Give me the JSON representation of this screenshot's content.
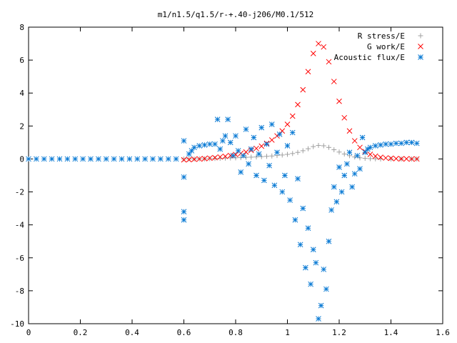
{
  "chart_data": {
    "type": "scatter",
    "title": "m1/n1.5/q1.5/r-+.40-j206/M0.1/512",
    "xlabel": "",
    "ylabel": "",
    "xlim": [
      0,
      1.6
    ],
    "ylim": [
      -10,
      8
    ],
    "x_ticks": [
      "0",
      "0.2",
      "0.4",
      "0.6",
      "0.8",
      "1",
      "1.2",
      "1.4",
      "1.6"
    ],
    "y_ticks": [
      "-10",
      "-8",
      "-6",
      "-4",
      "-2",
      "0",
      "2",
      "4",
      "6",
      "8"
    ],
    "grid": false,
    "legend_position": "top-right",
    "series": [
      {
        "name": "R stress/E",
        "marker": "plus",
        "color": "#a0a0a0",
        "points": [
          [
            0.6,
            0.0
          ],
          [
            0.62,
            0.0
          ],
          [
            0.64,
            0.0
          ],
          [
            0.66,
            0.01
          ],
          [
            0.68,
            0.01
          ],
          [
            0.7,
            0.02
          ],
          [
            0.72,
            0.03
          ],
          [
            0.74,
            0.04
          ],
          [
            0.76,
            0.05
          ],
          [
            0.78,
            0.06
          ],
          [
            0.8,
            0.07
          ],
          [
            0.82,
            0.08
          ],
          [
            0.84,
            0.1
          ],
          [
            0.86,
            0.11
          ],
          [
            0.88,
            0.12
          ],
          [
            0.9,
            0.14
          ],
          [
            0.92,
            0.16
          ],
          [
            0.94,
            0.18
          ],
          [
            0.96,
            0.21
          ],
          [
            0.98,
            0.24
          ],
          [
            1.0,
            0.28
          ],
          [
            1.02,
            0.33
          ],
          [
            1.04,
            0.4
          ],
          [
            1.06,
            0.5
          ],
          [
            1.08,
            0.62
          ],
          [
            1.1,
            0.75
          ],
          [
            1.12,
            0.82
          ],
          [
            1.14,
            0.8
          ],
          [
            1.16,
            0.7
          ],
          [
            1.18,
            0.56
          ],
          [
            1.2,
            0.42
          ],
          [
            1.22,
            0.3
          ],
          [
            1.24,
            0.2
          ],
          [
            1.26,
            0.12
          ],
          [
            1.28,
            0.07
          ],
          [
            1.3,
            0.04
          ],
          [
            1.32,
            0.02
          ],
          [
            1.34,
            0.01
          ],
          [
            1.36,
            0.0
          ],
          [
            1.4,
            0.0
          ],
          [
            1.44,
            0.0
          ],
          [
            1.48,
            0.0
          ],
          [
            1.5,
            0.0
          ]
        ]
      },
      {
        "name": "G work/E",
        "marker": "cross",
        "color": "#ff0000",
        "points": [
          [
            0.6,
            -0.05
          ],
          [
            0.62,
            -0.04
          ],
          [
            0.64,
            -0.02
          ],
          [
            0.66,
            0.0
          ],
          [
            0.68,
            0.02
          ],
          [
            0.7,
            0.05
          ],
          [
            0.72,
            0.08
          ],
          [
            0.74,
            0.12
          ],
          [
            0.76,
            0.16
          ],
          [
            0.78,
            0.21
          ],
          [
            0.8,
            0.27
          ],
          [
            0.82,
            0.34
          ],
          [
            0.84,
            0.42
          ],
          [
            0.86,
            0.52
          ],
          [
            0.88,
            0.64
          ],
          [
            0.9,
            0.78
          ],
          [
            0.92,
            0.95
          ],
          [
            0.94,
            1.15
          ],
          [
            0.96,
            1.4
          ],
          [
            0.98,
            1.7
          ],
          [
            1.0,
            2.1
          ],
          [
            1.02,
            2.6
          ],
          [
            1.04,
            3.3
          ],
          [
            1.06,
            4.2
          ],
          [
            1.08,
            5.3
          ],
          [
            1.1,
            6.4
          ],
          [
            1.12,
            7.0
          ],
          [
            1.14,
            6.8
          ],
          [
            1.16,
            5.9
          ],
          [
            1.18,
            4.7
          ],
          [
            1.2,
            3.5
          ],
          [
            1.22,
            2.5
          ],
          [
            1.24,
            1.7
          ],
          [
            1.26,
            1.1
          ],
          [
            1.28,
            0.7
          ],
          [
            1.3,
            0.45
          ],
          [
            1.32,
            0.28
          ],
          [
            1.34,
            0.17
          ],
          [
            1.36,
            0.1
          ],
          [
            1.38,
            0.06
          ],
          [
            1.4,
            0.04
          ],
          [
            1.42,
            0.02
          ],
          [
            1.44,
            0.01
          ],
          [
            1.46,
            0.01
          ],
          [
            1.48,
            0.0
          ],
          [
            1.5,
            0.0
          ]
        ]
      },
      {
        "name": "Acoustic flux/E",
        "marker": "star",
        "color": "#0a7ad4",
        "points": [
          [
            0.0,
            0.0
          ],
          [
            0.03,
            0.0
          ],
          [
            0.06,
            0.0
          ],
          [
            0.09,
            0.0
          ],
          [
            0.12,
            0.0
          ],
          [
            0.15,
            0.0
          ],
          [
            0.18,
            0.0
          ],
          [
            0.21,
            0.0
          ],
          [
            0.24,
            0.0
          ],
          [
            0.27,
            0.0
          ],
          [
            0.3,
            0.0
          ],
          [
            0.33,
            0.0
          ],
          [
            0.36,
            0.0
          ],
          [
            0.39,
            0.0
          ],
          [
            0.42,
            0.0
          ],
          [
            0.45,
            0.0
          ],
          [
            0.48,
            0.0
          ],
          [
            0.51,
            0.0
          ],
          [
            0.54,
            0.0
          ],
          [
            0.57,
            0.0
          ],
          [
            0.6,
            1.1
          ],
          [
            0.6,
            -1.1
          ],
          [
            0.6,
            -3.2
          ],
          [
            0.6,
            -3.7
          ],
          [
            0.62,
            0.3
          ],
          [
            0.63,
            0.5
          ],
          [
            0.64,
            0.7
          ],
          [
            0.66,
            0.8
          ],
          [
            0.68,
            0.85
          ],
          [
            0.7,
            0.9
          ],
          [
            0.72,
            0.9
          ],
          [
            0.73,
            2.4
          ],
          [
            0.74,
            0.6
          ],
          [
            0.75,
            1.1
          ],
          [
            0.76,
            1.4
          ],
          [
            0.77,
            2.4
          ],
          [
            0.78,
            1.0
          ],
          [
            0.79,
            0.2
          ],
          [
            0.8,
            1.4
          ],
          [
            0.81,
            0.5
          ],
          [
            0.82,
            -0.8
          ],
          [
            0.83,
            0.2
          ],
          [
            0.84,
            1.8
          ],
          [
            0.85,
            -0.3
          ],
          [
            0.86,
            0.6
          ],
          [
            0.87,
            1.3
          ],
          [
            0.88,
            -1.0
          ],
          [
            0.89,
            0.3
          ],
          [
            0.9,
            1.9
          ],
          [
            0.91,
            -1.3
          ],
          [
            0.92,
            0.9
          ],
          [
            0.93,
            -0.4
          ],
          [
            0.94,
            2.1
          ],
          [
            0.95,
            -1.6
          ],
          [
            0.96,
            0.4
          ],
          [
            0.97,
            1.5
          ],
          [
            0.98,
            -2.0
          ],
          [
            0.99,
            -1.0
          ],
          [
            1.0,
            0.8
          ],
          [
            1.01,
            -2.5
          ],
          [
            1.02,
            1.6
          ],
          [
            1.03,
            -3.7
          ],
          [
            1.04,
            -1.2
          ],
          [
            1.05,
            -5.2
          ],
          [
            1.06,
            -3.0
          ],
          [
            1.07,
            -6.6
          ],
          [
            1.08,
            -4.2
          ],
          [
            1.09,
            -7.6
          ],
          [
            1.1,
            -5.5
          ],
          [
            1.11,
            -6.3
          ],
          [
            1.12,
            -9.7
          ],
          [
            1.13,
            -8.9
          ],
          [
            1.14,
            -6.7
          ],
          [
            1.15,
            -7.9
          ],
          [
            1.16,
            -5.0
          ],
          [
            1.17,
            -3.1
          ],
          [
            1.18,
            -1.7
          ],
          [
            1.19,
            -2.6
          ],
          [
            1.2,
            -0.5
          ],
          [
            1.21,
            -2.0
          ],
          [
            1.22,
            -1.0
          ],
          [
            1.23,
            -0.3
          ],
          [
            1.24,
            0.4
          ],
          [
            1.25,
            -1.7
          ],
          [
            1.26,
            -0.9
          ],
          [
            1.27,
            0.2
          ],
          [
            1.28,
            -0.6
          ],
          [
            1.29,
            1.3
          ],
          [
            1.3,
            0.4
          ],
          [
            1.31,
            0.6
          ],
          [
            1.32,
            0.7
          ],
          [
            1.34,
            0.8
          ],
          [
            1.36,
            0.85
          ],
          [
            1.38,
            0.9
          ],
          [
            1.4,
            0.9
          ],
          [
            1.42,
            0.95
          ],
          [
            1.44,
            0.95
          ],
          [
            1.46,
            1.0
          ],
          [
            1.48,
            1.0
          ],
          [
            1.5,
            0.95
          ]
        ]
      }
    ]
  }
}
